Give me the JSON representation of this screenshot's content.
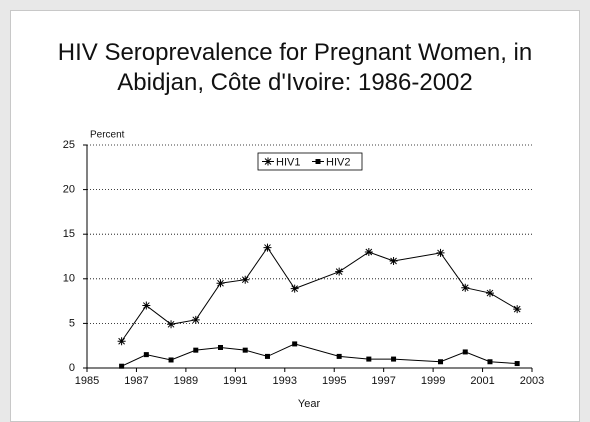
{
  "chart_data": {
    "type": "line",
    "title": "HIV Seroprevalence for Pregnant Women, in Abidjan, Côte d'Ivoire:  1986-2002",
    "y_label": "Percent",
    "x_label": "Year",
    "series": [
      {
        "name": "HIV1",
        "color": "#000000",
        "marker": "asterisk",
        "x": [
          1986.4,
          1987.4,
          1988.4,
          1989.4,
          1990.4,
          1991.4,
          1992.3,
          1993.4,
          1995.2,
          1996.4,
          1997.4,
          1999.3,
          2000.3,
          2001.3,
          2002.4
        ],
        "values": [
          3.0,
          7.0,
          4.9,
          5.4,
          9.5,
          9.9,
          13.5,
          8.9,
          10.8,
          13.0,
          12.0,
          12.9,
          9.0,
          8.4,
          6.6
        ]
      },
      {
        "name": "HIV2",
        "color": "#000000",
        "marker": "square",
        "x": [
          1986.4,
          1987.4,
          1988.4,
          1989.4,
          1990.4,
          1991.4,
          1992.3,
          1993.4,
          1995.2,
          1996.4,
          1997.4,
          1999.3,
          2000.3,
          2001.3,
          2002.4
        ],
        "values": [
          0.2,
          1.5,
          0.9,
          2.0,
          2.3,
          2.0,
          1.3,
          2.7,
          1.3,
          1.0,
          1.0,
          0.7,
          1.8,
          0.7,
          0.5
        ]
      }
    ],
    "xlim": [
      1985,
      2003
    ],
    "xticks": [
      1985,
      1987,
      1989,
      1991,
      1993,
      1995,
      1997,
      1999,
      2001,
      2003
    ],
    "ylim": [
      0,
      25
    ],
    "yticks": [
      0,
      5,
      10,
      15,
      20,
      25
    ],
    "grid": true,
    "legend": "top"
  }
}
